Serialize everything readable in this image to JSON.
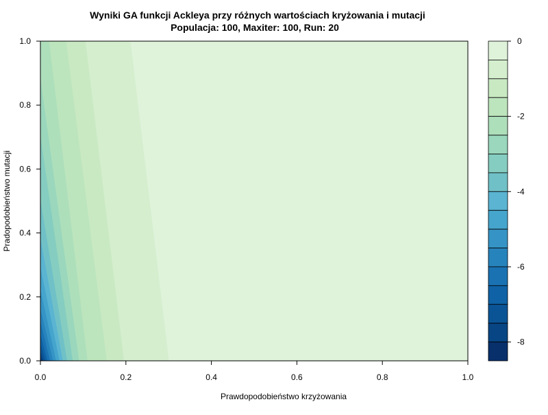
{
  "chart_data": {
    "type": "heatmap",
    "subtype": "filled-contour",
    "title": "Wyniki GA funkcji Ackleya przy różnych wartościach kryżowania i mutacji",
    "subtitle": "Populacja: 100, Maxiter: 100, Run: 20",
    "xlabel": "Prawdopodobieństwo krzyżowania",
    "ylabel": "Pradopodobieństwo mutacji",
    "xlim": [
      0,
      1
    ],
    "ylim": [
      0,
      1
    ],
    "x_ticks": [
      "0.0",
      "0.2",
      "0.4",
      "0.6",
      "0.8",
      "1.0"
    ],
    "y_ticks": [
      "0.0",
      "0.2",
      "0.4",
      "0.6",
      "0.8",
      "1.0"
    ],
    "legend": {
      "placement": "right",
      "range": [
        -8.5,
        0
      ],
      "step": 0.5,
      "tick_labels": [
        "0",
        "-2",
        "-4",
        "-6",
        "-8"
      ],
      "tick_values": [
        0,
        -2,
        -4,
        -6,
        -8
      ],
      "color_low": "#08306b",
      "color_high": "#e0f3db"
    },
    "levels": [
      {
        "min": -0.5,
        "max": 0.0,
        "color": "#dff2da",
        "x_at_y0": 0.61,
        "x_at_y1": 0.52
      },
      {
        "min": -1.0,
        "max": -0.5,
        "color": "#d4eece",
        "x_at_y0": 0.3,
        "x_at_y1": 0.21
      },
      {
        "min": -1.5,
        "max": -1.0,
        "color": "#c9e9c3",
        "x_at_y0": 0.195,
        "x_at_y1": 0.105
      },
      {
        "min": -2.0,
        "max": -1.5,
        "color": "#bde5bd",
        "x_at_y0": 0.155,
        "x_at_y1": 0.06
      },
      {
        "min": -2.5,
        "max": -2.0,
        "color": "#aedfbb",
        "x_at_y0": 0.11,
        "x_at_y1": 0.02
      },
      {
        "min": -3.0,
        "max": -2.5,
        "color": "#9ad7bc",
        "x_at_y0": 0.09,
        "x_at_y1": 0.0,
        "y_at_x0": 0.88
      },
      {
        "min": -3.5,
        "max": -3.0,
        "color": "#85cdc0",
        "x_at_y0": 0.075,
        "x_at_y1": 0.0,
        "y_at_x0": 0.7
      },
      {
        "min": -4.0,
        "max": -3.5,
        "color": "#70c1c7",
        "x_at_y0": 0.062,
        "x_at_y1": 0.0,
        "y_at_x0": 0.5
      },
      {
        "min": -4.5,
        "max": -4.0,
        "color": "#5ab4d2",
        "x_at_y0": 0.052,
        "x_at_y1": 0.0,
        "y_at_x0": 0.38
      },
      {
        "min": -5.0,
        "max": -4.5,
        "color": "#46a5cd",
        "x_at_y0": 0.044,
        "x_at_y1": 0.0,
        "y_at_x0": 0.29
      },
      {
        "min": -5.5,
        "max": -5.0,
        "color": "#3594c5",
        "x_at_y0": 0.036,
        "x_at_y1": 0.0,
        "y_at_x0": 0.22
      },
      {
        "min": -6.0,
        "max": -5.5,
        "color": "#2783bc",
        "x_at_y0": 0.029,
        "x_at_y1": 0.0,
        "y_at_x0": 0.16
      },
      {
        "min": -6.5,
        "max": -6.0,
        "color": "#1a72b2",
        "x_at_y0": 0.022,
        "x_at_y1": 0.0,
        "y_at_x0": 0.12
      },
      {
        "min": -7.0,
        "max": -6.5,
        "color": "#0f62a5",
        "x_at_y0": 0.016,
        "x_at_y1": 0.0,
        "y_at_x0": 0.08
      },
      {
        "min": -7.5,
        "max": -7.0,
        "color": "#0a5496",
        "x_at_y0": 0.011,
        "x_at_y1": 0.0,
        "y_at_x0": 0.05
      },
      {
        "min": -8.0,
        "max": -7.5,
        "color": "#084584",
        "x_at_y0": 0.007,
        "x_at_y1": 0.0,
        "y_at_x0": 0.025
      },
      {
        "min": -8.5,
        "max": -8.0,
        "color": "#08306b",
        "x_at_y0": 0.003,
        "x_at_y1": 0.0,
        "y_at_x0": 0.01
      }
    ]
  }
}
